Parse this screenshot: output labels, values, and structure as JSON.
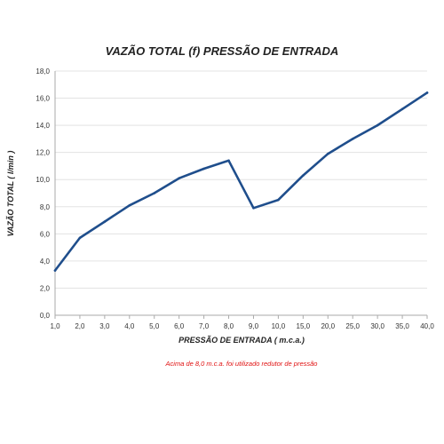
{
  "chart_data": {
    "type": "line",
    "title": "VAZÃO TOTAL (f) PRESSÃO DE ENTRADA",
    "xlabel": "PRESSÃO DE ENTRADA ( m.c.a.)",
    "ylabel": "VAZÃO TOTAL ( l/min )",
    "categories": [
      "1,0",
      "2,0",
      "3,0",
      "4,0",
      "5,0",
      "6,0",
      "7,0",
      "8,0",
      "9,0",
      "10,0",
      "15,0",
      "20,0",
      "25,0",
      "30,0",
      "35,0",
      "40,0"
    ],
    "series": [
      {
        "values": [
          3.3,
          5.7,
          6.9,
          8.1,
          9.0,
          10.1,
          10.8,
          11.4,
          7.9,
          8.5,
          10.3,
          11.9,
          13.0,
          14.0,
          15.2,
          16.4
        ]
      }
    ],
    "ylim": [
      0,
      18
    ],
    "yticks": [
      "0,0",
      "2,0",
      "4,0",
      "6,0",
      "8,0",
      "10,0",
      "12,0",
      "14,0",
      "16,0",
      "18,0"
    ],
    "grid": true,
    "line_color": "#1f4e8c",
    "note": "Acima de 8,0 m.c.a. foi utilizado redutor de pressão",
    "note_color": "#e01010"
  }
}
